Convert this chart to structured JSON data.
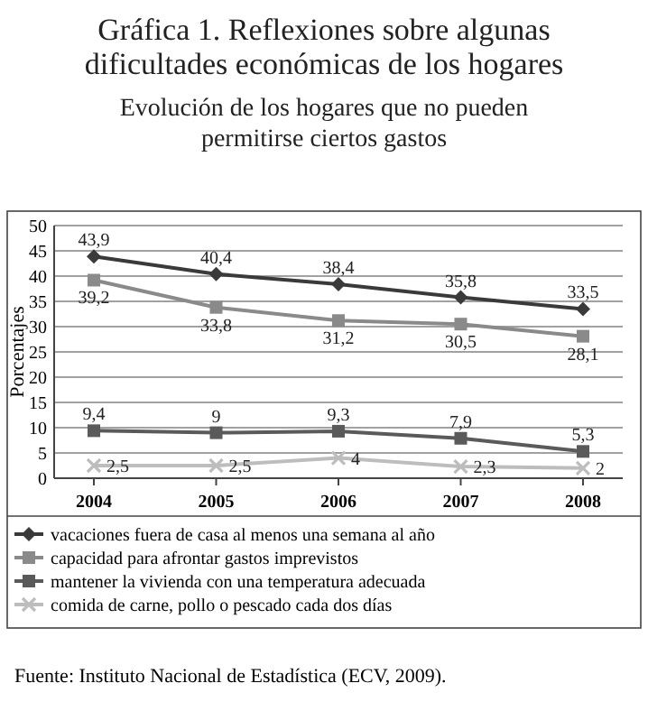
{
  "chart_data": {
    "type": "line",
    "title": "Gráfica 1. Reflexiones sobre algunas dificultades económicas de los hogares",
    "subtitle": "Evolución de los hogares que no pueden permitirse ciertos gastos",
    "ylabel": "Porcentajes",
    "categories": [
      "2004",
      "2005",
      "2006",
      "2007",
      "2008"
    ],
    "series": [
      {
        "name": "vacaciones fuera de casa al menos una semana al año",
        "color": "#3a3a3a",
        "marker": "diamond",
        "values": [
          43.9,
          40.4,
          38.4,
          35.8,
          33.5
        ],
        "value_labels": [
          "43,9",
          "40,4",
          "38,4",
          "35,8",
          "33,5"
        ]
      },
      {
        "name": "capacidad para afrontar gastos imprevistos",
        "color": "#8a8a8a",
        "marker": "square",
        "values": [
          39.2,
          33.8,
          31.2,
          30.5,
          28.1
        ],
        "value_labels": [
          "39,2",
          "33,8",
          "31,2",
          "30,5",
          "28,1"
        ]
      },
      {
        "name": "mantener la vivienda con una temperatura adecuada",
        "color": "#5a5a5a",
        "marker": "square",
        "values": [
          9.4,
          9,
          9.3,
          7.9,
          5.3
        ],
        "value_labels": [
          "9,4",
          "9",
          "9,3",
          "7,9",
          "5,3"
        ]
      },
      {
        "name": "comida de carne, pollo o pescado cada dos días",
        "color": "#bdbdbd",
        "marker": "cross",
        "values": [
          2.5,
          2.5,
          4,
          2.3,
          2
        ],
        "value_labels": [
          "2,5",
          "2,5",
          "4",
          "2,3",
          "2"
        ]
      }
    ],
    "ylim": [
      0,
      50
    ],
    "yticks": [
      0,
      5,
      10,
      15,
      20,
      25,
      30,
      35,
      40,
      45,
      50
    ],
    "grid": "y",
    "legend": "bottom",
    "line_style": "solid",
    "annotations": [
      "Fuente: Instituto Nacional de Estadística (ECV, 2009)."
    ]
  }
}
